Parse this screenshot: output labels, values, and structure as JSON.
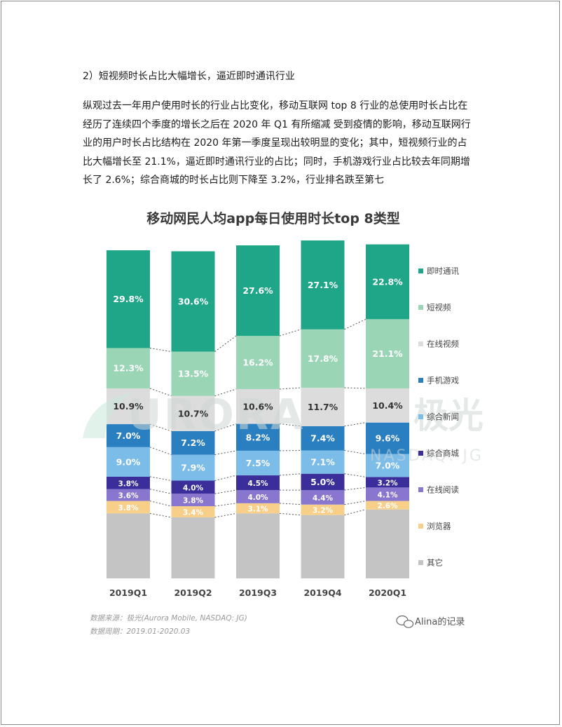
{
  "heading": "2）短视频时长占比大幅增长，逼近即时通讯行业",
  "paragraph_lines": [
    "纵观过去一年用户使用时长的行业占比变化，移动互联网 top 8 行业的总使用时长占比在",
    "经历了连续四个季度的增长之后在 2020 年 Q1 有所缩减 受到疫情的影响，移动互联网行",
    "业的用户时长占比结构在 2020 年第一季度呈现出较明显的变化；其中，短视频行业的占",
    "比大幅增长至 21.1%，逼近即时通讯行业的占比；同时，手机游戏行业占比较去年同期增",
    "长了 2.6%；综合商城的时长占比则下降至 3.2%，行业排名跌至第七"
  ],
  "watermark": {
    "text": "URORA",
    "chinese": "极光",
    "sub": "NASDAQ: JG"
  },
  "footer": {
    "source": "数据来源：极光(Aurora Mobile, NASDAQ: JG)",
    "period": "数据周期：2019.01-2020.03",
    "wechat": "Alina的记录"
  },
  "chart_data": {
    "type": "bar",
    "stacked": true,
    "title": "移动网民人均app每日使用时长top 8类型",
    "categories": [
      "2019Q1",
      "2019Q2",
      "2019Q3",
      "2019Q4",
      "2020Q1"
    ],
    "ylim": [
      0,
      100
    ],
    "legend_position": "right",
    "series": [
      {
        "name": "其它",
        "color": "#c4c4c4",
        "values": [
          19.8,
          18.6,
          19.8,
          19.3,
          21.0
        ],
        "labeled": false
      },
      {
        "name": "浏览器",
        "color": "#f7cf88",
        "values": [
          3.8,
          3.4,
          3.1,
          3.2,
          2.6
        ]
      },
      {
        "name": "在线阅读",
        "color": "#8976cf",
        "values": [
          3.6,
          3.8,
          4.0,
          4.4,
          4.1
        ]
      },
      {
        "name": "综合商城",
        "color": "#3b2e9a",
        "values": [
          3.8,
          4.0,
          4.5,
          5.0,
          3.2
        ]
      },
      {
        "name": "综合新闻",
        "color": "#7cbce9",
        "values": [
          9.0,
          7.9,
          7.5,
          7.1,
          7.0
        ]
      },
      {
        "name": "手机游戏",
        "color": "#2a7fc1",
        "values": [
          7.0,
          7.2,
          8.2,
          7.4,
          9.6
        ]
      },
      {
        "name": "在线视频",
        "color": "#dcdcdc",
        "values": [
          10.9,
          10.7,
          10.6,
          11.7,
          10.4
        ]
      },
      {
        "name": "短视频",
        "color": "#9ad5b6",
        "values": [
          12.3,
          13.5,
          16.2,
          17.8,
          21.1
        ]
      },
      {
        "name": "即时通讯",
        "color": "#1fa688",
        "values": [
          29.8,
          30.6,
          27.6,
          27.1,
          22.8
        ]
      }
    ],
    "legend_order": [
      "即时通讯",
      "短视频",
      "在线视频",
      "手机游戏",
      "综合新闻",
      "综合商城",
      "在线阅读",
      "浏览器",
      "其它"
    ]
  }
}
